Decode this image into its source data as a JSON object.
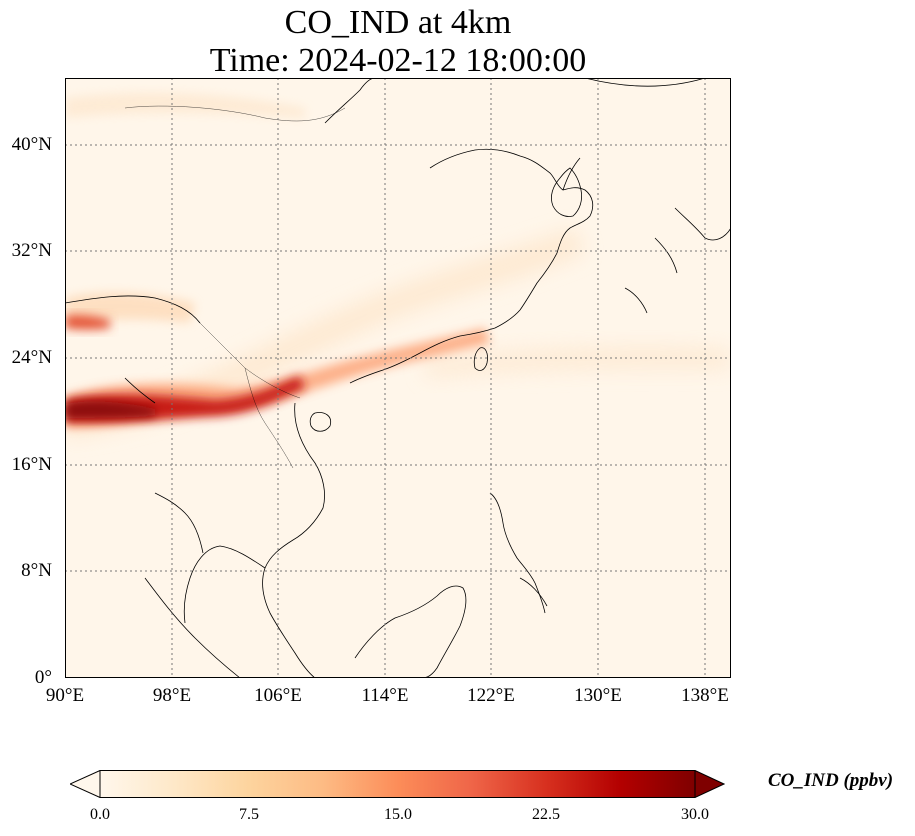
{
  "title": {
    "line1": "CO_IND at 4km",
    "line2": "Time: 2024-02-12 18:00:00"
  },
  "map": {
    "extent": {
      "lon_min": 90,
      "lon_max": 140,
      "lat_min": 0,
      "lat_max": 45
    },
    "lat_ticks": [
      "40°N",
      "32°N",
      "24°N",
      "16°N",
      "8°N",
      "0°"
    ],
    "lon_ticks": [
      "90°E",
      "98°E",
      "106°E",
      "114°E",
      "122°E",
      "130°E",
      "138°E"
    ],
    "gridlines": true,
    "gridline_color": "#888888",
    "coastline_color": "#000000"
  },
  "colorbar": {
    "label": "CO_IND (ppbv)",
    "colormap": "OrRd",
    "colors": [
      "#fff7ec",
      "#fee8c8",
      "#fdd49e",
      "#fdbb84",
      "#fc8d59",
      "#ef6548",
      "#d7301f",
      "#b30000",
      "#7f0000"
    ],
    "min": 0.0,
    "max": 30.0,
    "extend": "both",
    "ticks": [
      "0.0",
      "7.5",
      "15.0",
      "22.5",
      "30.0"
    ]
  }
}
